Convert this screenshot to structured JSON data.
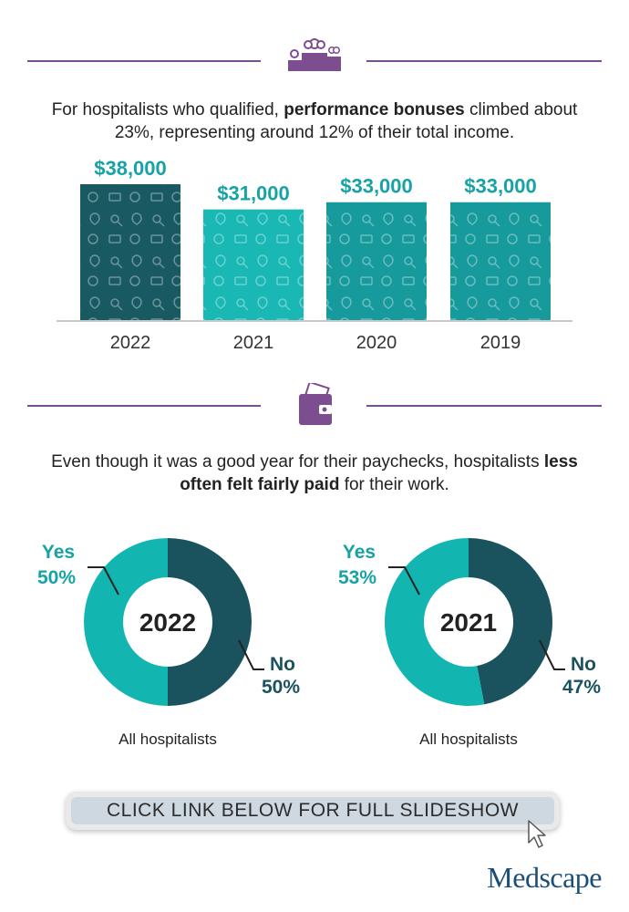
{
  "section1": {
    "headline_pre": "For hospitalists who qualified, ",
    "headline_bold": "performance bonuses",
    "headline_post": " climbed about 23%, representing around 12% of their total income.",
    "icon": "money-podium-icon"
  },
  "section2": {
    "headline_pre": "Even though it was a good year for their paychecks, hospitalists ",
    "headline_bold": "less often felt fairly paid",
    "headline_post": " for their work.",
    "icon": "wallet-icon"
  },
  "colors": {
    "accent_purple": "#7d4e8f",
    "teal_dark": "#195a62",
    "teal_light": "#1ab8b4",
    "teal_text": "#17a3a5"
  },
  "chart_data": [
    {
      "type": "bar",
      "categories": [
        "2022",
        "2021",
        "2020",
        "2019"
      ],
      "values": [
        38000,
        31000,
        33000,
        33000
      ],
      "value_labels": [
        "$38,000",
        "$31,000",
        "$33,000",
        "$33,000"
      ],
      "bar_colors": [
        "#195a62",
        "#1ab8b4",
        "#179a9c",
        "#179a9c"
      ],
      "ylim": [
        0,
        38000
      ]
    },
    {
      "type": "pie",
      "center_label": "2022",
      "caption": "All hospitalists",
      "slices": [
        {
          "name": "Yes",
          "value": 50,
          "label": "50%",
          "color": "#13b5b1"
        },
        {
          "name": "No",
          "value": 50,
          "label": "50%",
          "color": "#1a535e"
        }
      ]
    },
    {
      "type": "pie",
      "center_label": "2021",
      "caption": "All hospitalists",
      "slices": [
        {
          "name": "Yes",
          "value": 53,
          "label": "53%",
          "color": "#13b5b1"
        },
        {
          "name": "No",
          "value": 47,
          "label": "47%",
          "color": "#1a535e"
        }
      ]
    }
  ],
  "cta": {
    "label": "CLICK LINK BELOW FOR FULL SLIDESHOW"
  },
  "brand": {
    "name": "Medscape"
  }
}
